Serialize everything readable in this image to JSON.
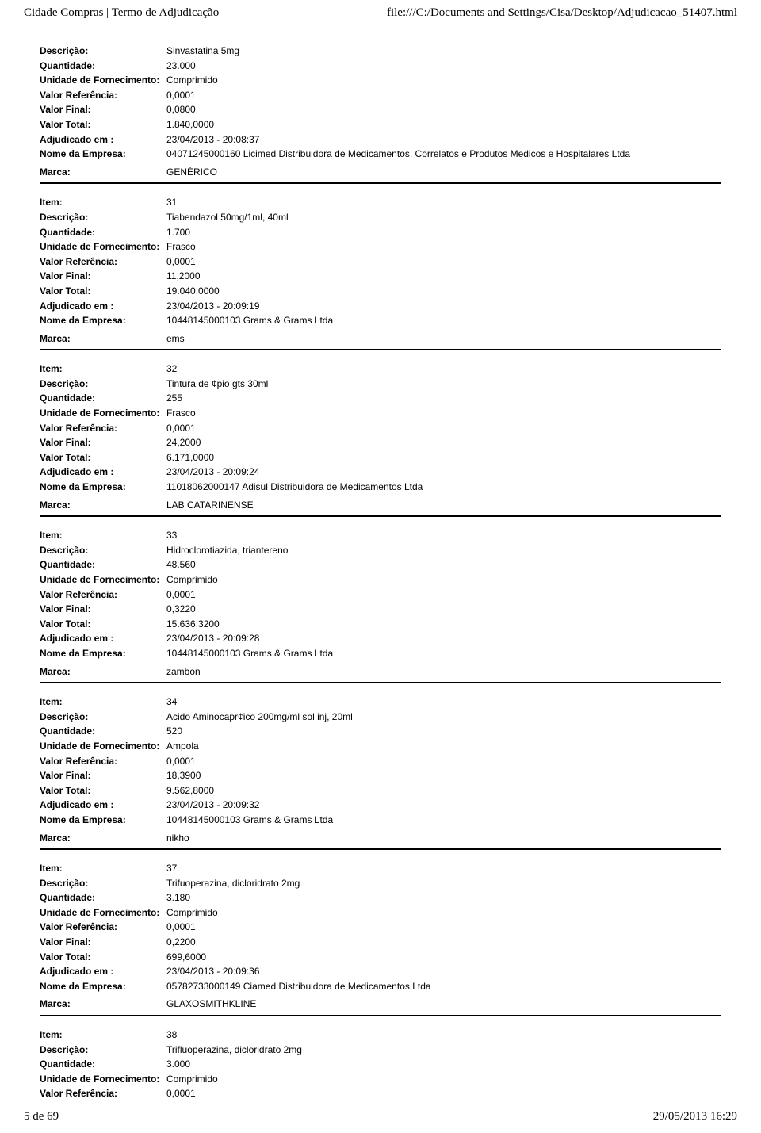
{
  "header": {
    "left": "Cidade Compras | Termo de Adjudicação",
    "right": "file:///C:/Documents and Settings/Cisa/Desktop/Adjudicacao_51407.html"
  },
  "footer": {
    "left": "5 de 69",
    "right": "29/05/2013 16:29"
  },
  "labels": {
    "item": "Item:",
    "descricao": "Descrição:",
    "quantidade": "Quantidade:",
    "unidade": "Unidade de Fornecimento:",
    "valor_ref": "Valor Referência:",
    "valor_final": "Valor Final:",
    "valor_total": "Valor Total:",
    "adjudicado": "Adjudicado em :",
    "empresa": "Nome da Empresa:",
    "marca": "Marca:"
  },
  "first_block": {
    "descricao": "Sinvastatina 5mg",
    "quantidade": "23.000",
    "unidade": "Comprimido",
    "valor_ref": "0,0001",
    "valor_final": "0,0800",
    "valor_total": "1.840,0000",
    "adjudicado": "23/04/2013 - 20:08:37",
    "empresa": "04071245000160 Licimed Distribuidora de Medicamentos, Correlatos e Produtos Medicos e Hospitalares Ltda",
    "marca": "GENÉRICO"
  },
  "blocks": [
    {
      "item": "31",
      "descricao": "Tiabendazol 50mg/1ml, 40ml",
      "quantidade": "1.700",
      "unidade": "Frasco",
      "valor_ref": "0,0001",
      "valor_final": "11,2000",
      "valor_total": "19.040,0000",
      "adjudicado": "23/04/2013 - 20:09:19",
      "empresa": "10448145000103 Grams & Grams Ltda",
      "marca": "ems"
    },
    {
      "item": "32",
      "descricao": "Tintura de ¢pio gts 30ml",
      "quantidade": "255",
      "unidade": "Frasco",
      "valor_ref": "0,0001",
      "valor_final": "24,2000",
      "valor_total": "6.171,0000",
      "adjudicado": "23/04/2013 - 20:09:24",
      "empresa": "11018062000147 Adisul Distribuidora de Medicamentos Ltda",
      "marca": "LAB CATARINENSE"
    },
    {
      "item": "33",
      "descricao": "Hidroclorotiazida, triantereno",
      "quantidade": "48.560",
      "unidade": "Comprimido",
      "valor_ref": "0,0001",
      "valor_final": "0,3220",
      "valor_total": "15.636,3200",
      "adjudicado": "23/04/2013 - 20:09:28",
      "empresa": "10448145000103 Grams & Grams Ltda",
      "marca": "zambon"
    },
    {
      "item": "34",
      "descricao": "Acido Aminocapr¢ico 200mg/ml sol inj, 20ml",
      "quantidade": "520",
      "unidade": "Ampola",
      "valor_ref": "0,0001",
      "valor_final": "18,3900",
      "valor_total": "9.562,8000",
      "adjudicado": "23/04/2013 - 20:09:32",
      "empresa": "10448145000103 Grams & Grams Ltda",
      "marca": "nikho"
    },
    {
      "item": "37",
      "descricao": "Trifuoperazina, dicloridrato 2mg",
      "quantidade": "3.180",
      "unidade": "Comprimido",
      "valor_ref": "0,0001",
      "valor_final": "0,2200",
      "valor_total": "699,6000",
      "adjudicado": "23/04/2013 - 20:09:36",
      "empresa": "05782733000149 Ciamed Distribuidora de Medicamentos Ltda",
      "marca": "GLAXOSMITHKLINE"
    }
  ],
  "last_block": {
    "item": "38",
    "descricao": "Trifluoperazina, dicloridrato 2mg",
    "quantidade": "3.000",
    "unidade": "Comprimido",
    "valor_ref": "0,0001"
  }
}
